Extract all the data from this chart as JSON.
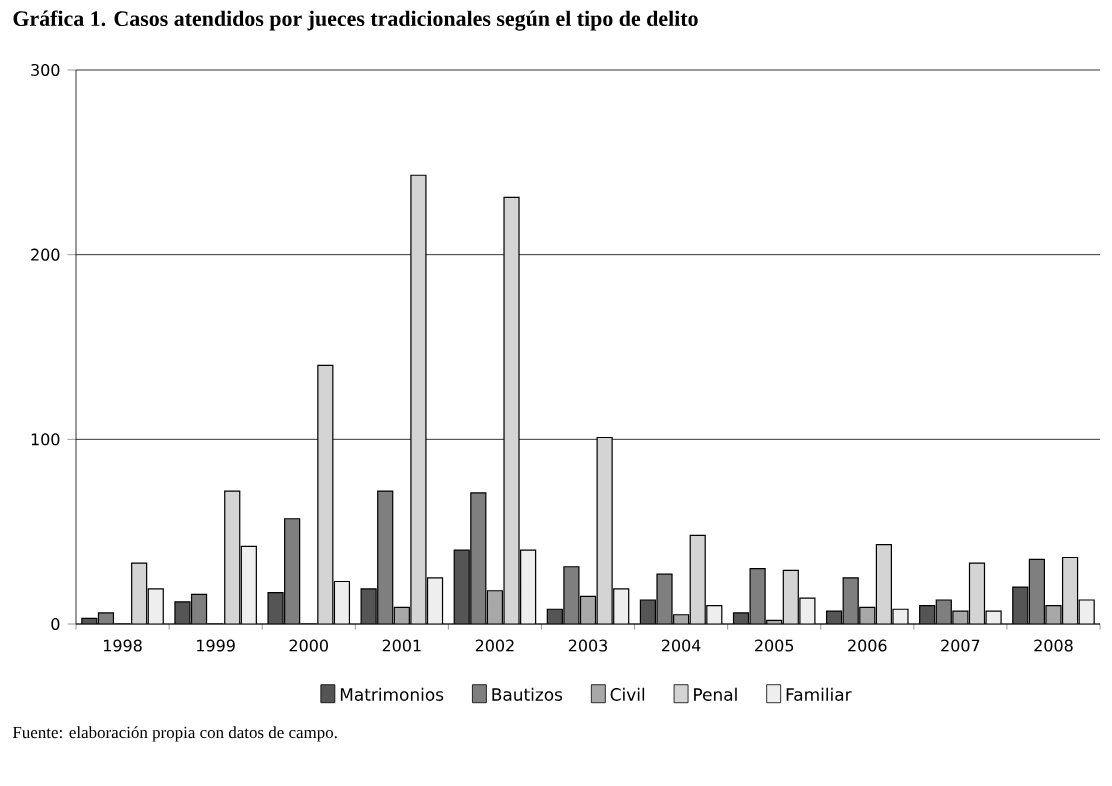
{
  "chart_data": {
    "type": "bar",
    "title": "Gráfica 1. Casos atendidos por jueces tradicionales según el tipo de delito",
    "categories": [
      "1998",
      "1999",
      "2000",
      "2001",
      "2002",
      "2003",
      "2004",
      "2005",
      "2006",
      "2007",
      "2008"
    ],
    "series": [
      {
        "name": "Matrimonios",
        "color": "#555555",
        "values": [
          3,
          12,
          17,
          19,
          40,
          8,
          13,
          6,
          7,
          10,
          20
        ]
      },
      {
        "name": "Bautizos",
        "color": "#7f7f7f",
        "values": [
          6,
          16,
          57,
          72,
          71,
          31,
          27,
          30,
          25,
          13,
          35
        ]
      },
      {
        "name": "Civil",
        "color": "#a8a8a8",
        "values": [
          0,
          0,
          0,
          9,
          18,
          15,
          5,
          2,
          9,
          7,
          10
        ]
      },
      {
        "name": "Penal",
        "color": "#d4d4d4",
        "values": [
          33,
          72,
          140,
          243,
          231,
          101,
          48,
          29,
          43,
          33,
          36
        ]
      },
      {
        "name": "Familiar",
        "color": "#eeeeee",
        "values": [
          19,
          42,
          23,
          25,
          40,
          19,
          10,
          14,
          8,
          7,
          13
        ]
      }
    ],
    "ylim": [
      0,
      300
    ],
    "yticks": [
      0,
      100,
      200,
      300
    ],
    "grid": "y",
    "legend": "bottom",
    "annotations": [
      "Fuente: elaboración propia con datos de campo."
    ]
  }
}
